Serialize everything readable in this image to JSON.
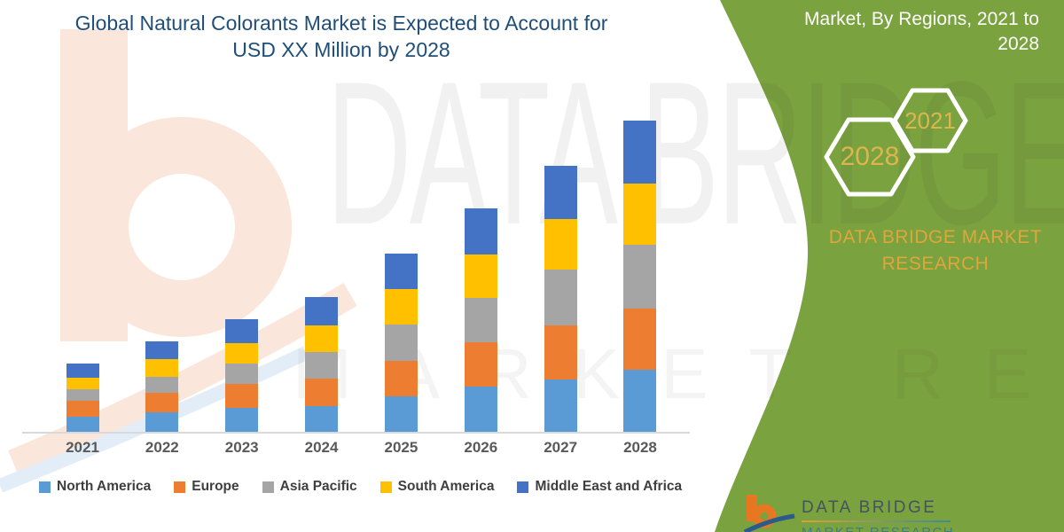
{
  "header": {
    "title_line1": "Global Natural Colorants Market is Expected to Account for",
    "title_line2": "USD XX Million by 2028",
    "title_color": "#1F4E79"
  },
  "side_panel": {
    "heading_line1": "Market, By Regions, 2021 to",
    "heading_line2": "2028",
    "background_color": "#7AA23F",
    "hexagons": [
      {
        "year": "2028"
      },
      {
        "year": "2021"
      }
    ],
    "brand_line1": "DATA BRIDGE MARKET",
    "brand_line2": "RESEARCH",
    "gold_color": "#DFA63C"
  },
  "watermark": {
    "line1": "DATA BRIDGE",
    "line2": "MARKET RESEARCH"
  },
  "footer_logo": {
    "brand": "DATA BRIDGE",
    "sub": "MARKET RESEARCH"
  },
  "chart_data": {
    "type": "bar",
    "stacked": true,
    "categories": [
      "2021",
      "2022",
      "2023",
      "2024",
      "2025",
      "2026",
      "2027",
      "2028"
    ],
    "series": [
      {
        "name": "North America",
        "color": "#5B9BD5",
        "values": [
          17,
          22,
          27,
          29,
          40,
          51,
          59,
          70
        ]
      },
      {
        "name": "Europe",
        "color": "#ED7D31",
        "values": [
          18,
          22,
          27,
          31,
          40,
          50,
          61,
          69
        ]
      },
      {
        "name": "Asia Pacific",
        "color": "#A5A5A5",
        "values": [
          13,
          18,
          23,
          30,
          41,
          50,
          63,
          72
        ]
      },
      {
        "name": "South America",
        "color": "#FFC000",
        "values": [
          13,
          20,
          23,
          30,
          40,
          49,
          57,
          69
        ]
      },
      {
        "name": "Middle East and Africa",
        "color": "#4472C4",
        "values": [
          16,
          20,
          27,
          32,
          40,
          52,
          60,
          71
        ]
      }
    ],
    "value_axis_visible": false,
    "values_masked_as": "XX",
    "axis_line_color": "#D9D9D9",
    "legend_position": "bottom"
  }
}
